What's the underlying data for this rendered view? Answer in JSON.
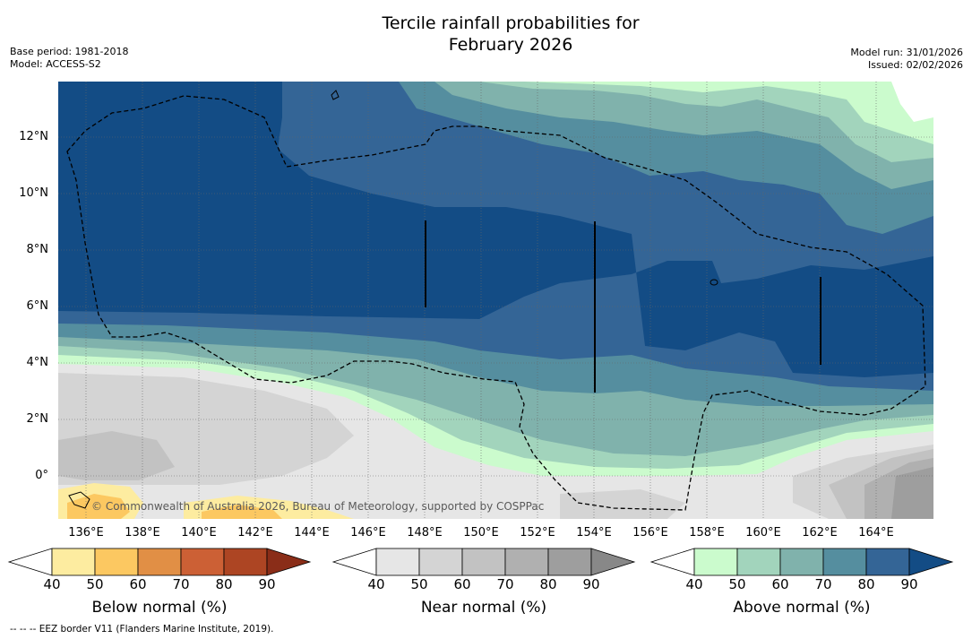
{
  "title_line1": "Tercile rainfall probabilities for",
  "title_line2": "February 2026",
  "meta_left": {
    "base_period": "Base period: 1981-2018",
    "model": "Model: ACCESS-S2"
  },
  "meta_right": {
    "model_run": "Model run: 31/01/2026",
    "issued": "Issued: 02/02/2026"
  },
  "lat_labels": [
    "12°N",
    "10°N",
    "8°N",
    "6°N",
    "4°N",
    "2°N",
    "0°"
  ],
  "lon_labels": [
    "136°E",
    "138°E",
    "140°E",
    "142°E",
    "144°E",
    "146°E",
    "148°E",
    "150°E",
    "152°E",
    "154°E",
    "156°E",
    "158°E",
    "160°E",
    "162°E",
    "164°E"
  ],
  "credit": "© Commonwealth of Australia 2026, Bureau of Meteorology, supported by COSPPac",
  "footnote": "--  --  -- EEZ border V11 (Flanders Marine Institute, 2019).",
  "colorbars": [
    {
      "name": "below",
      "title": "Below normal (%)",
      "ticks": [
        "40",
        "50",
        "60",
        "70",
        "80",
        "90"
      ],
      "colors": [
        "#ffffff",
        "#fdeca0",
        "#fcc861",
        "#e18f45",
        "#cc6035",
        "#ad4523",
        "#8a2d18"
      ]
    },
    {
      "name": "near",
      "title": "Near normal (%)",
      "ticks": [
        "40",
        "50",
        "60",
        "70",
        "80",
        "90"
      ],
      "colors": [
        "#ffffff",
        "#e6e6e6",
        "#d4d4d4",
        "#c2c2c2",
        "#b0b0b0",
        "#9e9e9e",
        "#888888"
      ]
    },
    {
      "name": "above",
      "title": "Above normal (%)",
      "ticks": [
        "40",
        "50",
        "60",
        "70",
        "80",
        "90"
      ],
      "colors": [
        "#ffffff",
        "#cbfbcd",
        "#a2d4bc",
        "#80b2ac",
        "#558e9f",
        "#346596",
        "#134c85"
      ]
    }
  ]
}
